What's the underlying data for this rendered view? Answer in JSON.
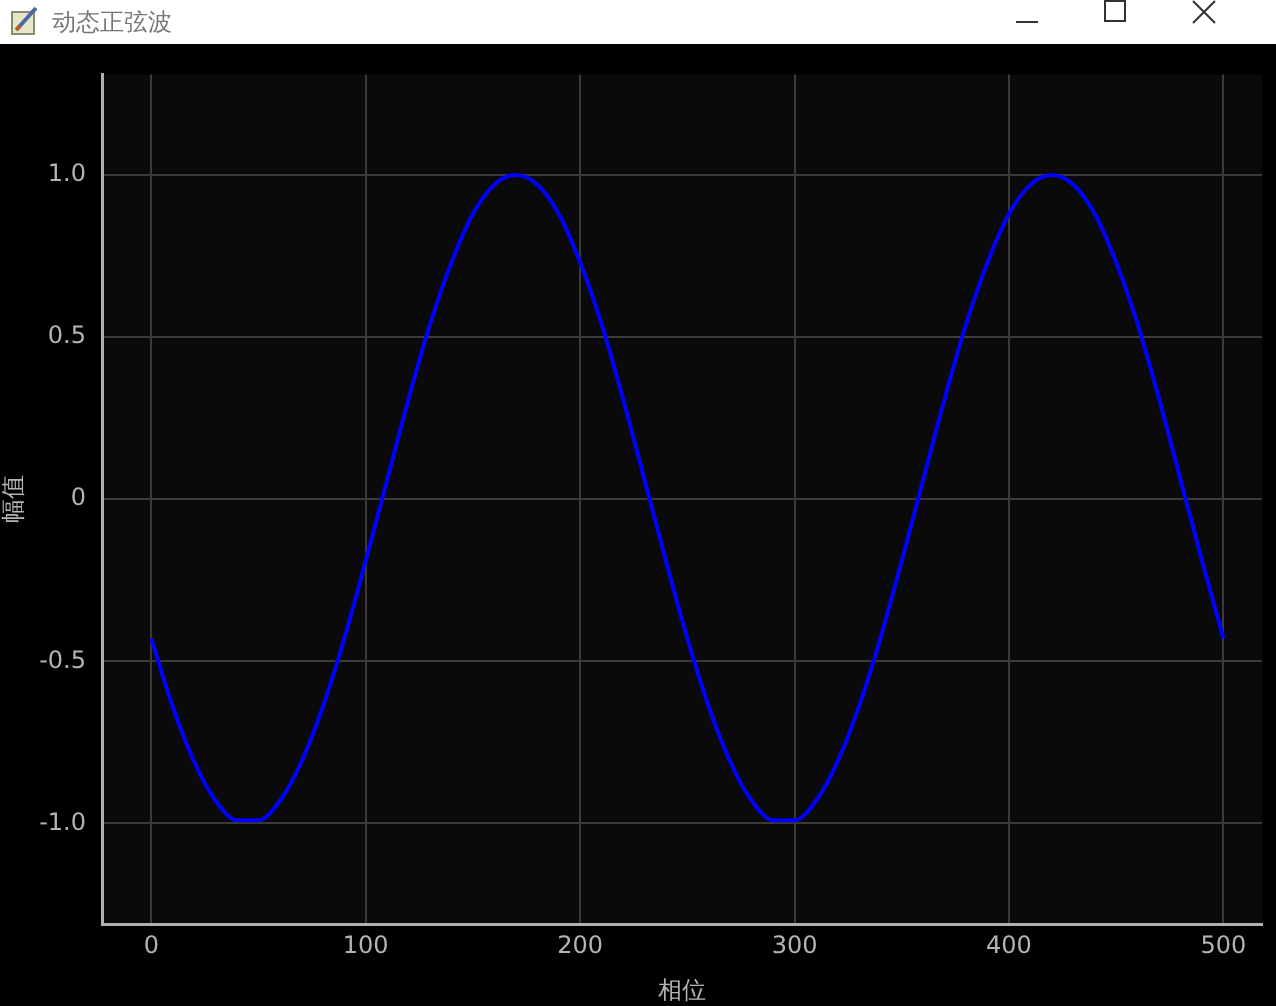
{
  "chart_data": {
    "type": "line",
    "title": "动态正弦波",
    "xlabel": "相位",
    "ylabel": "幅值",
    "x": [
      0,
      10,
      20,
      30,
      40,
      50,
      60,
      70,
      80,
      90,
      100,
      110,
      120,
      130,
      140,
      150,
      160,
      170,
      180,
      190,
      200,
      210,
      220,
      230,
      240,
      250,
      260,
      270,
      280,
      290,
      300,
      310,
      320,
      330,
      340,
      350,
      360,
      370,
      380,
      390,
      400,
      410,
      420,
      430,
      440,
      450,
      460,
      470,
      480,
      490,
      500
    ],
    "series": [
      {
        "color": "#0000ff",
        "values": [
          -0.43,
          -0.64,
          -0.81,
          -0.93,
          -0.99,
          -0.99,
          -0.93,
          -0.81,
          -0.64,
          -0.43,
          -0.19,
          0.06,
          0.31,
          0.54,
          0.73,
          0.88,
          0.97,
          1.0,
          0.97,
          0.88,
          0.73,
          0.54,
          0.31,
          0.06,
          -0.19,
          -0.43,
          -0.64,
          -0.81,
          -0.93,
          -0.99,
          -0.99,
          -0.93,
          -0.81,
          -0.64,
          -0.43,
          -0.19,
          0.06,
          0.31,
          0.54,
          0.73,
          0.88,
          0.97,
          1.0,
          0.97,
          0.88,
          0.73,
          0.54,
          0.31,
          0.06,
          -0.19,
          -0.43
        ]
      }
    ],
    "xlim": [
      -23,
      518
    ],
    "xticks": [
      0,
      100,
      200,
      300,
      400,
      500
    ],
    "ylim": [
      -1.31,
      1.31
    ],
    "yticks": [
      {
        "value": -1,
        "label": "-1.0"
      },
      -0.5,
      0,
      0.5,
      {
        "value": 1,
        "label": "1.0"
      }
    ],
    "grid": true,
    "legend": false,
    "marker": "none",
    "line_style": "solid"
  }
}
